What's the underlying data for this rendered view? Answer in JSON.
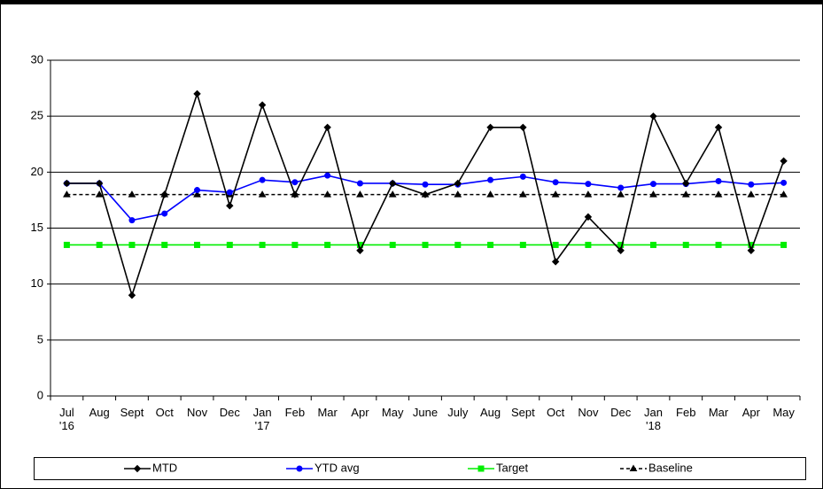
{
  "chart_data": {
    "type": "line",
    "categories": [
      "Jul\n'16",
      "Aug",
      "Sept",
      "Oct",
      "Nov",
      "Dec",
      "Jan\n'17",
      "Feb",
      "Mar",
      "Apr",
      "May",
      "June",
      "July",
      "Aug",
      "Sept",
      "Oct",
      "Nov",
      "Dec",
      "Jan\n'18",
      "Feb",
      "Mar",
      "Apr",
      "May"
    ],
    "series": [
      {
        "name": "MTD",
        "color": "#000000",
        "marker": "diamond",
        "dashed": false,
        "values": [
          19,
          19,
          9,
          18,
          27,
          17,
          26,
          18,
          24,
          13,
          19,
          18,
          19,
          24,
          24,
          12,
          16,
          13,
          25,
          19,
          24,
          13,
          21
        ]
      },
      {
        "name": "YTD avg",
        "color": "#0000ff",
        "marker": "circle",
        "dashed": false,
        "values": [
          19,
          19,
          15.7,
          16.3,
          18.4,
          18.2,
          19.3,
          19.1,
          19.7,
          19,
          19,
          18.9,
          18.9,
          19.3,
          19.6,
          19.1,
          18.95,
          18.6,
          18.95,
          18.95,
          19.2,
          18.9,
          19.05
        ]
      },
      {
        "name": "Target",
        "color": "#00ee00",
        "marker": "square",
        "dashed": false,
        "values": [
          13.5,
          13.5,
          13.5,
          13.5,
          13.5,
          13.5,
          13.5,
          13.5,
          13.5,
          13.5,
          13.5,
          13.5,
          13.5,
          13.5,
          13.5,
          13.5,
          13.5,
          13.5,
          13.5,
          13.5,
          13.5,
          13.5,
          13.5
        ]
      },
      {
        "name": "Baseline",
        "color": "#000000",
        "marker": "triangle",
        "dashed": true,
        "values": [
          18,
          18,
          18,
          18,
          18,
          18,
          18,
          18,
          18,
          18,
          18,
          18,
          18,
          18,
          18,
          18,
          18,
          18,
          18,
          18,
          18,
          18,
          18
        ]
      }
    ],
    "ylim": [
      0,
      30
    ],
    "yticks": [
      0,
      5,
      10,
      15,
      20,
      25,
      30
    ],
    "grid": true,
    "legend": "bottom"
  }
}
